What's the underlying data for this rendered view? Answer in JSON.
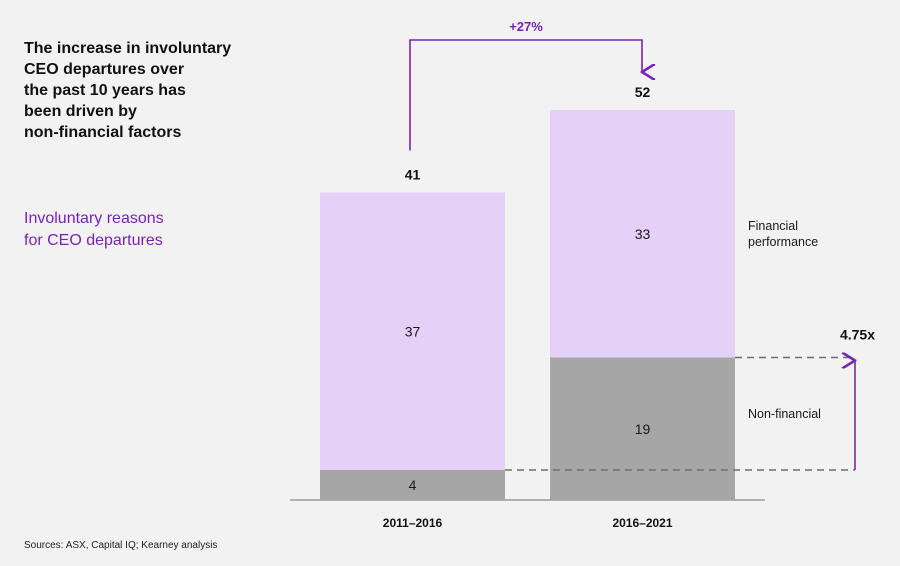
{
  "title": "The increase in involuntary\nCEO departures over\nthe past 10 years has\nbeen driven by\nnon-financial factors",
  "subtitle": "Involuntary reasons\nfor CEO departures",
  "source": "Sources: ASX, Capital IQ; Kearney analysis",
  "colors": {
    "financial": "#e5d0f8",
    "non_financial": "#a6a6a6",
    "accent": "#7a22b8",
    "dashed": "#6e6e6e",
    "baseline": "#9a9a9a"
  },
  "chart_data": {
    "type": "bar",
    "stacked": true,
    "categories": [
      "2011–2016",
      "2016–2021"
    ],
    "series": [
      {
        "name": "Non-financial",
        "values": [
          4,
          19
        ]
      },
      {
        "name": "Financial performance",
        "values": [
          37,
          33
        ]
      }
    ],
    "totals": [
      41,
      52
    ],
    "ylim": [
      0,
      52
    ],
    "legend_placement": "right",
    "annotations": {
      "growth_label": "+27%",
      "multiplier_label": "4.75x"
    }
  }
}
